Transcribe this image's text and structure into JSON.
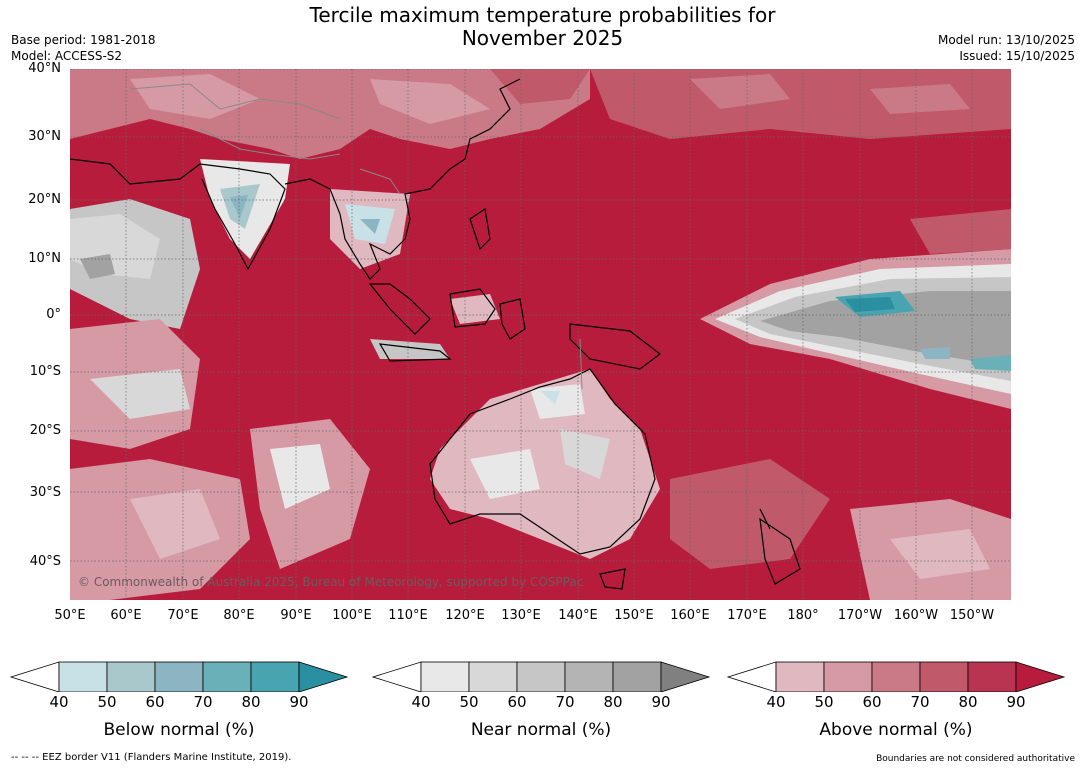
{
  "header": {
    "title_line1": "Tercile maximum temperature probabilities for",
    "title_line2": "November 2025",
    "base_period": "Base period: 1981-2018",
    "model": "Model: ACCESS-S2",
    "model_run": "Model run: 13/10/2025",
    "issued": "Issued: 15/10/2025"
  },
  "map": {
    "lat_labels": [
      "40°N",
      "30°N",
      "20°N",
      "10°N",
      "0°",
      "10°S",
      "20°S",
      "30°S",
      "40°S"
    ],
    "lon_labels": [
      "50°E",
      "60°E",
      "70°E",
      "80°E",
      "90°E",
      "100°E",
      "110°E",
      "120°E",
      "130°E",
      "140°E",
      "150°E",
      "160°E",
      "170°E",
      "180°",
      "170°W",
      "160°W",
      "150°W"
    ],
    "copyright": "© Commonwealth of Australia 2025, Bureau of Meteorology, supported by COSPPac",
    "dominant_category": "Above normal"
  },
  "colorbars": [
    {
      "label": "Below normal (%)",
      "ticks": [
        "40",
        "50",
        "60",
        "70",
        "80",
        "90"
      ],
      "colors": [
        "#c8e1e7",
        "#a8c8cc",
        "#8bb5c2",
        "#6ab0b8",
        "#48a4b0",
        "#2a8fa0"
      ]
    },
    {
      "label": "Near normal (%)",
      "ticks": [
        "40",
        "50",
        "60",
        "70",
        "80",
        "90"
      ],
      "colors": [
        "#e8e8e8",
        "#d8d8d8",
        "#c6c6c6",
        "#b4b4b4",
        "#a2a2a2",
        "#808080"
      ]
    },
    {
      "label": "Above normal (%)",
      "ticks": [
        "40",
        "50",
        "60",
        "70",
        "80",
        "90"
      ],
      "colors": [
        "#e0b8c0",
        "#d69aa4",
        "#ca7a86",
        "#c05a6a",
        "#b83450",
        "#b81c3c"
      ]
    }
  ],
  "footer": {
    "eez_note": "--  --  -- EEZ border V11 (Flanders Marine Institute, 2019).",
    "disclaimer": "Boundaries are not considered authoritative"
  }
}
